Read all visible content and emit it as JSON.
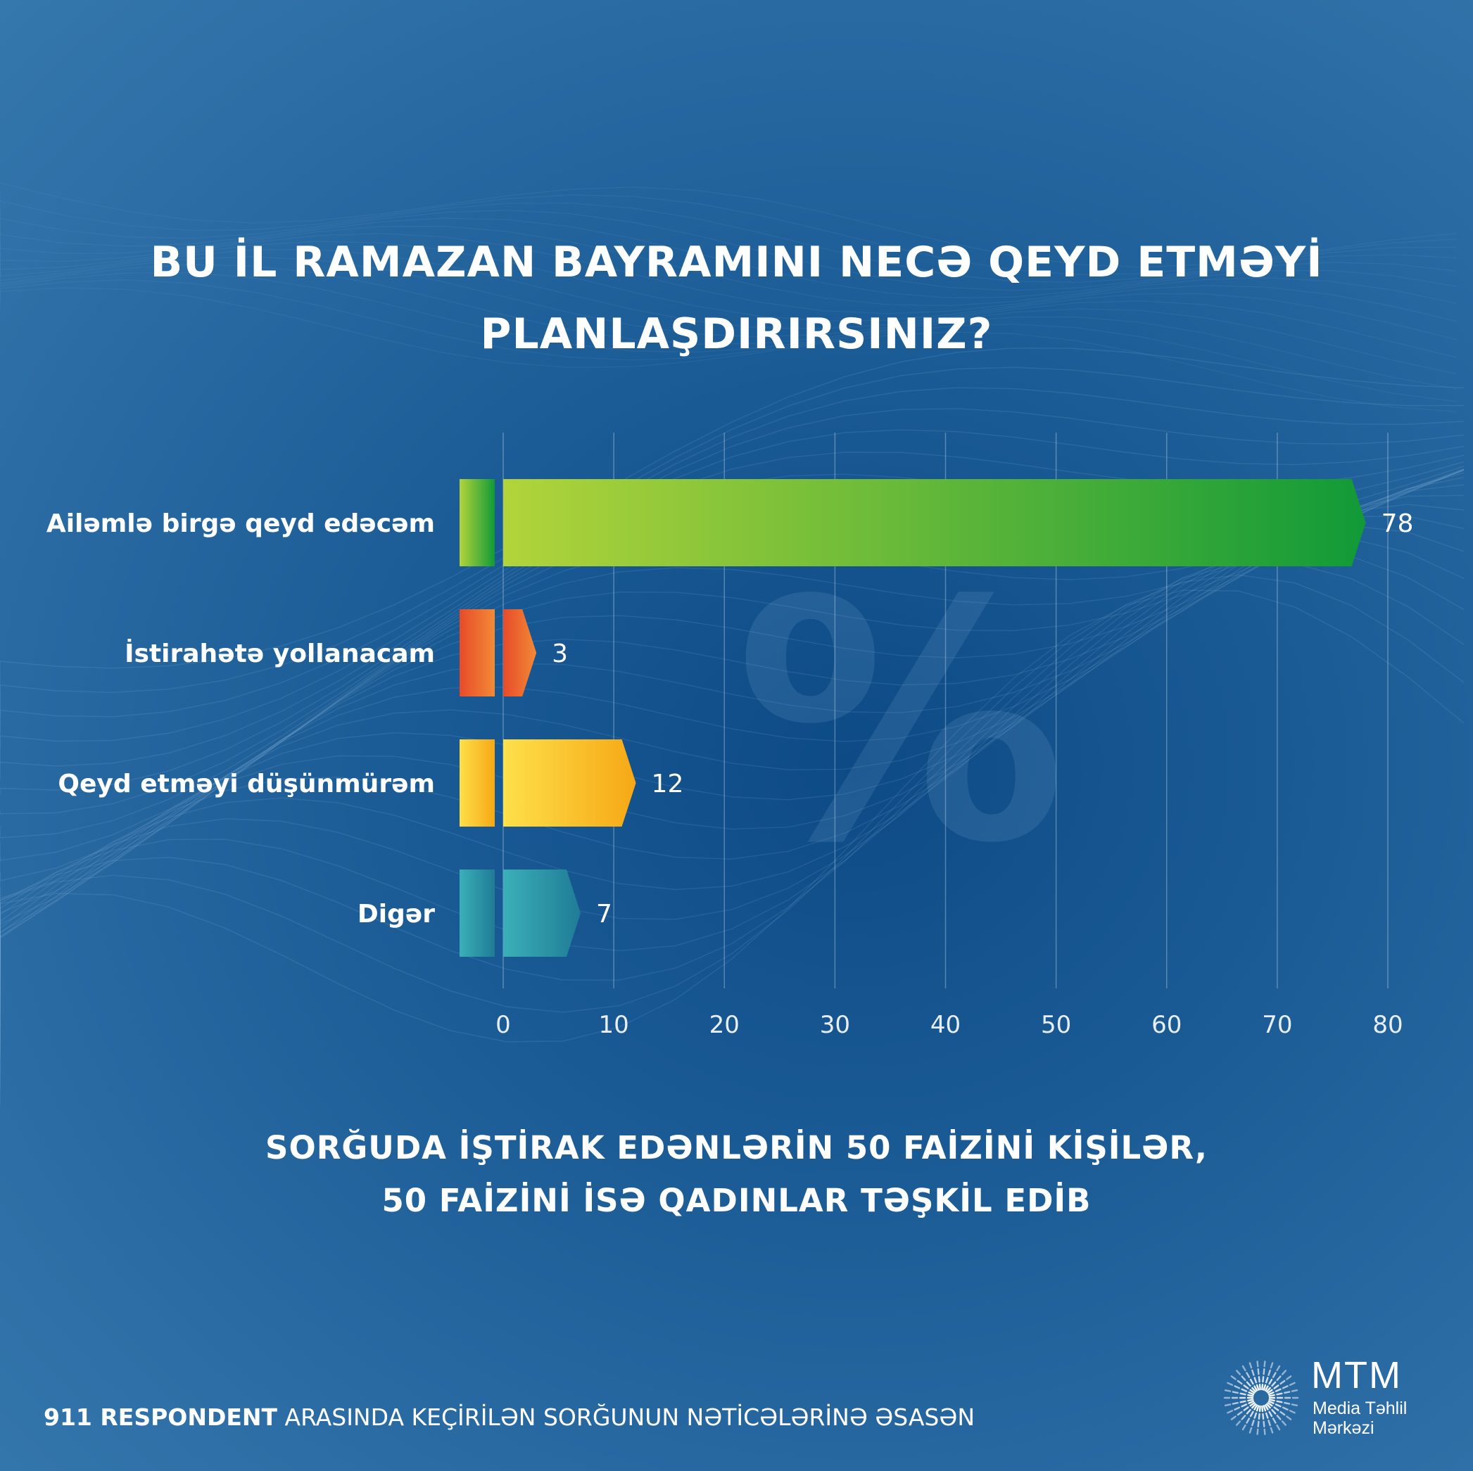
{
  "title": {
    "line1": "BU İL RAMAZAN BAYRAMINI NECƏ QEYD ETMƏYİ",
    "line2": "PLANLAŞDIRIRSINIZ?"
  },
  "watermark": "%",
  "chart_data": {
    "type": "bar",
    "orientation": "horizontal",
    "categories": [
      "Ailəmlə birgə qeyd edəcəm",
      "İstirahətə yollanacam",
      "Qeyd etməyi düşünmürəm",
      "Digər"
    ],
    "values": [
      78,
      3,
      12,
      7
    ],
    "value_labels": [
      "78",
      "3",
      "12",
      "7"
    ],
    "xlim": [
      0,
      80
    ],
    "xticks": [
      0,
      10,
      20,
      30,
      40,
      50,
      60,
      70,
      80
    ],
    "xtick_labels": [
      "0",
      "10",
      "20",
      "30",
      "40",
      "50",
      "60",
      "70",
      "80"
    ],
    "grid": true,
    "colors": [
      [
        "#b2d43a",
        "#119a38"
      ],
      [
        "#e84a2a",
        "#f28a36"
      ],
      [
        "#fde04a",
        "#f6a815"
      ],
      [
        "#3bb0b8",
        "#1f7c96"
      ]
    ]
  },
  "subtitle": {
    "line1": "SORĞUDA İŞTİRAK EDƏNLƏRİN 50 FAİZİNİ KİŞİLƏR,",
    "line2": "50 FAİZİNİ İSƏ QADINLAR TƏŞKİL EDİB"
  },
  "footer": {
    "bold": "911 RESPONDENT",
    "rest": " ARASINDA KEÇİRİLƏN SORĞUNUN NƏTİCƏLƏRİNƏ ƏSASƏN"
  },
  "logo": {
    "name": "MTM",
    "sub1": "Media Təhlil",
    "sub2": "Mərkəzi",
    "icon": "sunburst-grid-icon"
  }
}
